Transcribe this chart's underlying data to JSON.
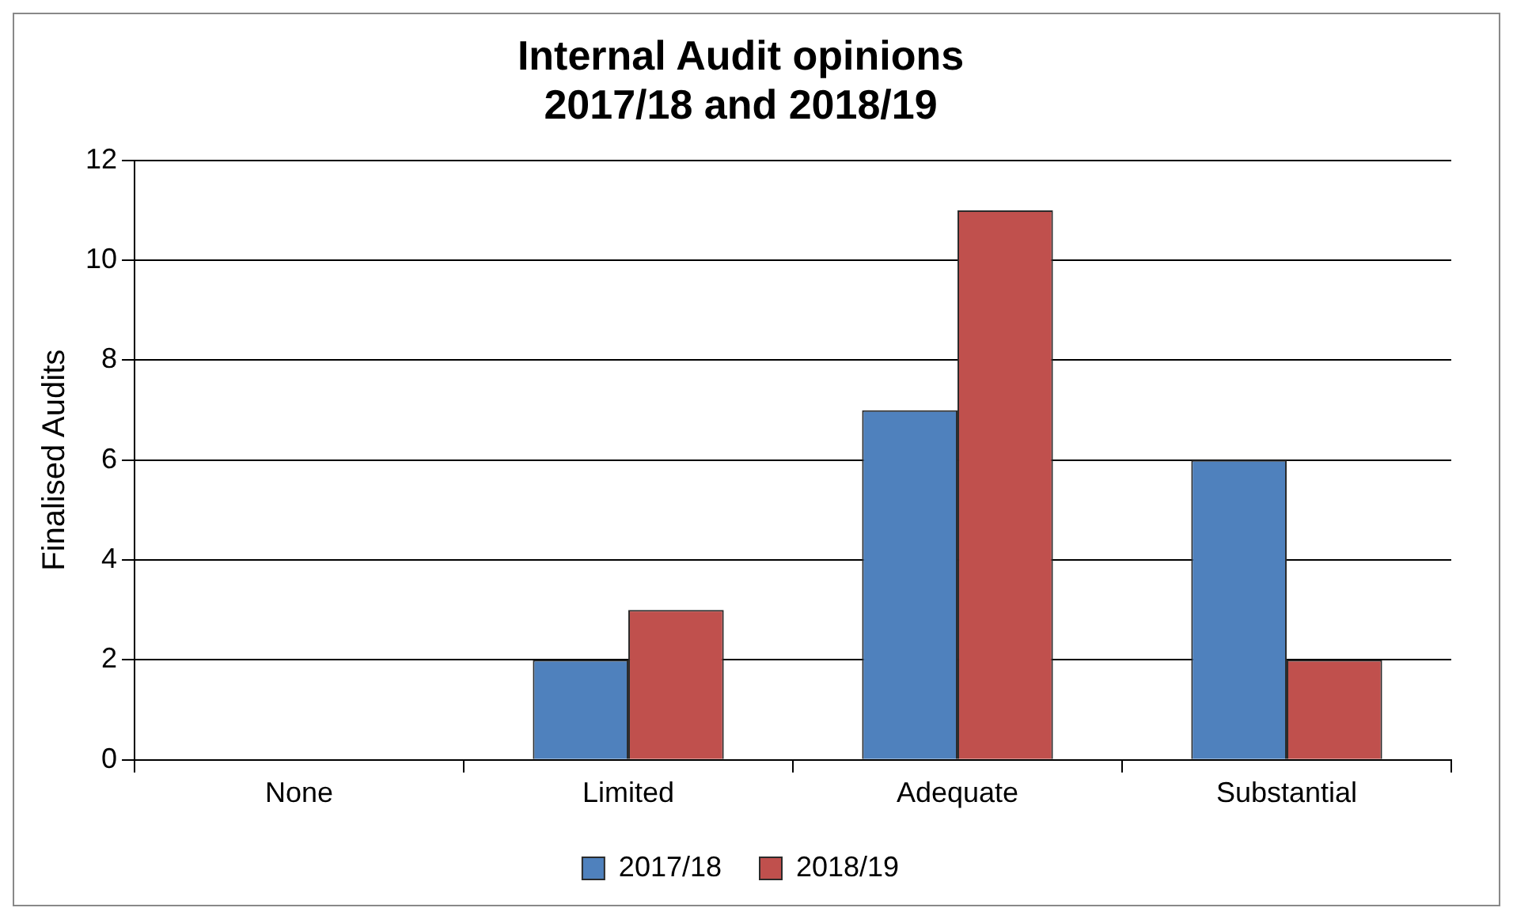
{
  "chart_data": {
    "type": "bar",
    "title": "Internal Audit opinions\n2017/18 and 2018/19",
    "ylabel": "Finalised Audits",
    "categories": [
      "None",
      "Limited",
      "Adequate",
      "Substantial"
    ],
    "series": [
      {
        "name": "2017/18",
        "color": "#4f81bd",
        "values": [
          0,
          2,
          7,
          6
        ]
      },
      {
        "name": "2018/19",
        "color": "#c0504d",
        "values": [
          0,
          3,
          11,
          2
        ]
      }
    ],
    "ylim": [
      0,
      12
    ],
    "yticks": [
      0,
      2,
      4,
      6,
      8,
      10,
      12
    ],
    "grid": "y",
    "legend": "bottom"
  }
}
